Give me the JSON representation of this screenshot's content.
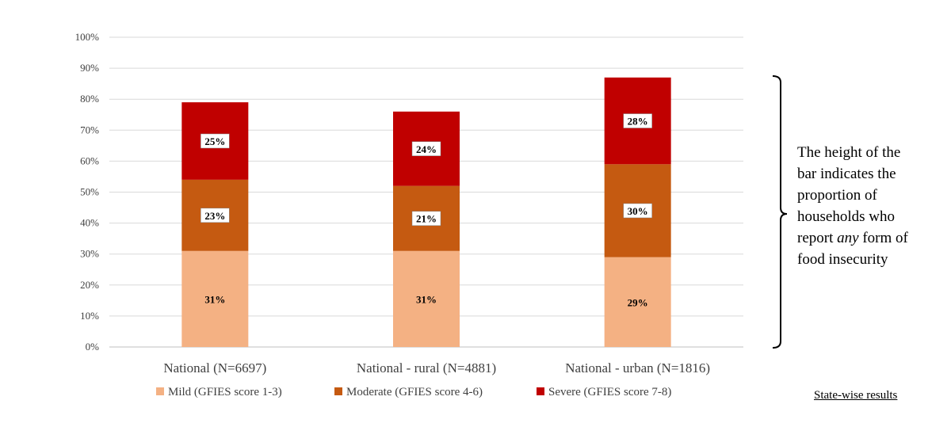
{
  "chart_data": {
    "type": "bar",
    "stacked": true,
    "categories": [
      "National (N=6697)",
      "National - rural (N=4881)",
      "National - urban (N=1816)"
    ],
    "series": [
      {
        "name": "Mild (GFIES score 1-3)",
        "values": [
          31,
          31,
          29
        ],
        "color": "#f4b183"
      },
      {
        "name": "Moderate (GFIES score 4-6)",
        "values": [
          23,
          21,
          30
        ],
        "color": "#c55a11"
      },
      {
        "name": "Severe (GFIES score 7-8)",
        "values": [
          25,
          24,
          28
        ],
        "color": "#c00000"
      }
    ],
    "data_labels": [
      [
        "31%",
        "31%",
        "29%"
      ],
      [
        "23%",
        "21%",
        "30%"
      ],
      [
        "25%",
        "24%",
        "28%"
      ]
    ],
    "ylim": [
      0,
      100
    ],
    "y_ticks": [
      "0%",
      "10%",
      "20%",
      "30%",
      "40%",
      "50%",
      "60%",
      "70%",
      "80%",
      "90%",
      "100%"
    ],
    "grid": true,
    "legend_position": "bottom"
  },
  "annotation": {
    "line1": "The height of the",
    "line2": "bar indicates the",
    "line3": "proportion of",
    "line4": "households who",
    "line5_pre": "report ",
    "line5_em": "any",
    "line5_post": " form of",
    "line6": "food insecurity"
  },
  "link_label": "State-wise results"
}
